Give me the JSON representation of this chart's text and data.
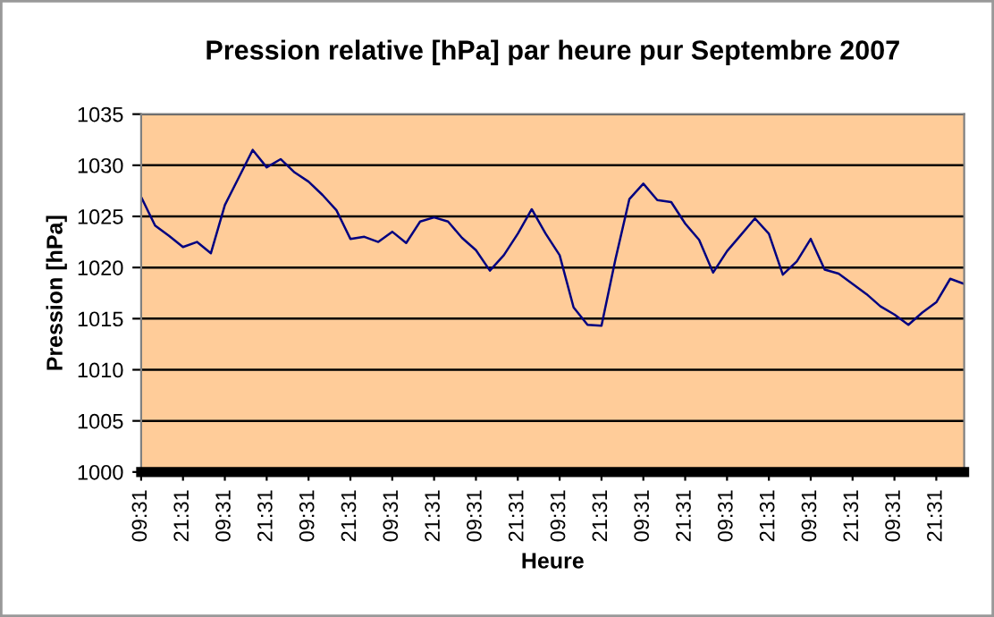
{
  "chart_data": {
    "type": "line",
    "title": "Pression relative [hPa] par heure pur Septembre 2007",
    "xlabel": "Heure",
    "ylabel": "Pression [hPa]",
    "categories": [
      "09:31",
      null,
      null,
      "21:31",
      null,
      null,
      "09:31",
      null,
      null,
      "21:31",
      null,
      null,
      "09:31",
      null,
      null,
      "21:31",
      null,
      null,
      "09:31",
      null,
      null,
      "21:31",
      null,
      null,
      "09:31",
      null,
      null,
      "21:31",
      null,
      null,
      "09:31",
      null,
      null,
      "21:31",
      null,
      null,
      "09:31",
      null,
      null,
      "21:31",
      null,
      null,
      "09:31",
      null,
      null,
      "21:31",
      null,
      null,
      "09:31",
      null,
      null,
      "21:31",
      null,
      null,
      "09:31",
      null,
      null,
      "21:31",
      null,
      null
    ],
    "series": [
      {
        "color": "#000080",
        "values": [
          1026.9,
          1024.1,
          1023.1,
          1022.0,
          1022.5,
          1021.4,
          1026.1,
          1028.8,
          1031.5,
          1029.8,
          1030.6,
          1029.3,
          1028.4,
          1027.1,
          1025.6,
          1022.8,
          1023.0,
          1022.5,
          1023.5,
          1022.4,
          1024.5,
          1024.9,
          1024.5,
          1022.9,
          1021.7,
          1019.7,
          1021.2,
          1023.3,
          1025.7,
          1023.3,
          1021.2,
          1016.1,
          1014.4,
          1014.3,
          1020.8,
          1026.7,
          1028.2,
          1026.6,
          1026.4,
          1024.3,
          1022.7,
          1019.5,
          1021.6,
          1023.2,
          1024.8,
          1023.3,
          1019.3,
          1020.6,
          1022.8,
          1019.8,
          1019.4,
          1018.4,
          1017.4,
          1016.2,
          1015.4,
          1014.4,
          1015.6,
          1016.6,
          1018.9,
          1018.4
        ]
      }
    ],
    "ylim": [
      1000,
      1035
    ],
    "yticks": [
      1000,
      1005,
      1010,
      1015,
      1020,
      1025,
      1030,
      1035
    ],
    "grid": "y",
    "legend": false,
    "marker": "none",
    "line_style": "solid"
  }
}
